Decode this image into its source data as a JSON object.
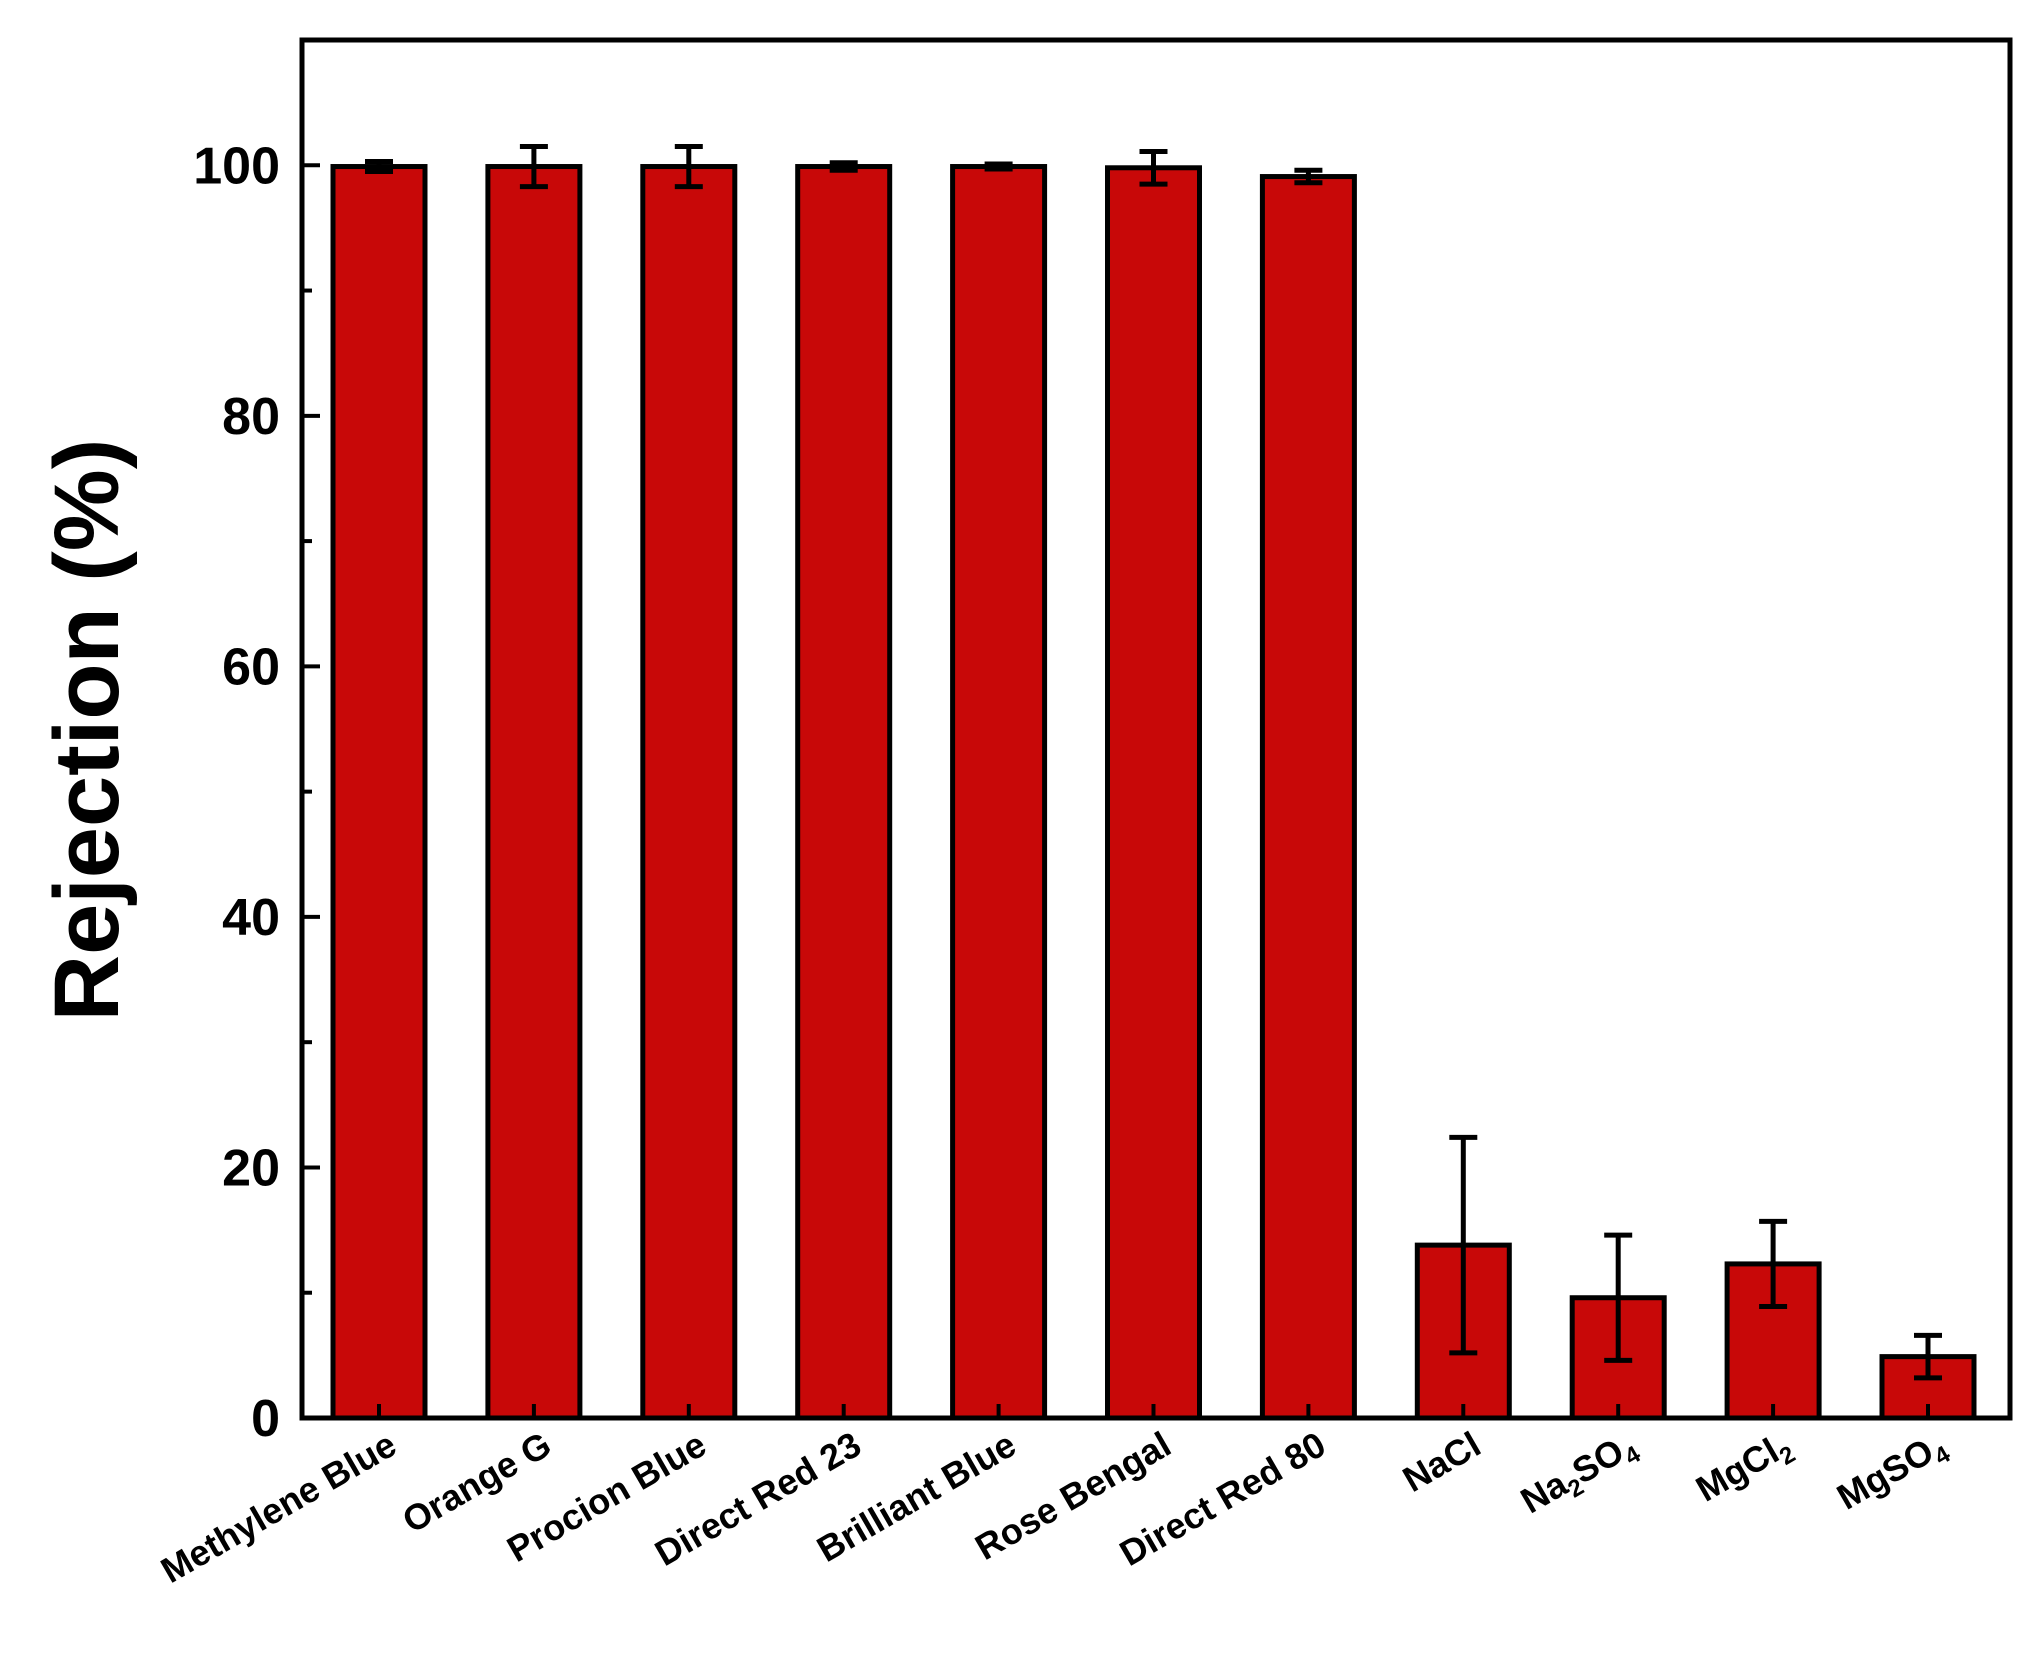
{
  "chart_data": {
    "type": "bar",
    "title": "",
    "xlabel": "",
    "ylabel": "Rejection (%)",
    "ylim": [
      0,
      110
    ],
    "yticks": [
      "0",
      "20",
      "40",
      "60",
      "80",
      "100"
    ],
    "grid": false,
    "legend": "none",
    "categories": [
      {
        "label": "Methylene Blue",
        "sub": []
      },
      {
        "label": "Orange G",
        "sub": []
      },
      {
        "label": "Procion Blue",
        "sub": []
      },
      {
        "label": "Direct Red 23",
        "sub": []
      },
      {
        "label": "Brilliant Blue",
        "sub": []
      },
      {
        "label": "Rose Bengal",
        "sub": []
      },
      {
        "label": "Direct Red 80",
        "sub": []
      },
      {
        "label": "NaCl",
        "sub": []
      },
      {
        "label": "Na2SO4",
        "sub": [
          [
            "Na",
            false
          ],
          [
            "2",
            true
          ],
          [
            "SO",
            false
          ],
          [
            "4",
            true
          ]
        ]
      },
      {
        "label": "MgCl2",
        "sub": [
          [
            "MgCl",
            false
          ],
          [
            "2",
            true
          ]
        ]
      },
      {
        "label": "MgSO4",
        "sub": [
          [
            "MgSO",
            false
          ],
          [
            "4",
            true
          ]
        ]
      }
    ],
    "values": [
      99.9,
      99.9,
      99.9,
      99.9,
      99.9,
      99.8,
      99.1,
      13.8,
      9.6,
      12.3,
      4.9
    ],
    "errors": [
      0.4,
      1.6,
      1.6,
      0.3,
      0.2,
      1.3,
      0.5,
      8.6,
      5.0,
      3.4,
      1.7
    ],
    "colors": {
      "bar": "#c80808",
      "outline": "#000000"
    }
  }
}
